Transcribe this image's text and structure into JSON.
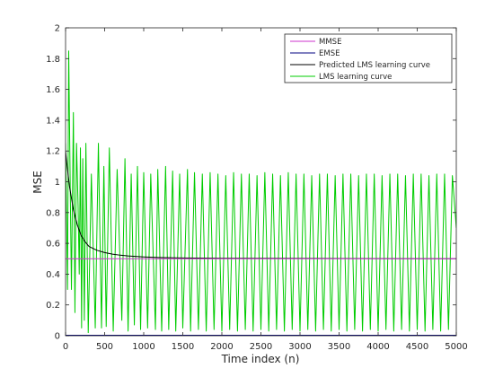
{
  "chart_data": {
    "type": "line",
    "title": "",
    "xlabel": "Time index (n)",
    "ylabel": "MSE",
    "xlim": [
      0,
      5000
    ],
    "ylim": [
      0,
      2
    ],
    "xticks": [
      0,
      500,
      1000,
      1500,
      2000,
      2500,
      3000,
      3500,
      4000,
      4500,
      5000
    ],
    "yticks": [
      0,
      0.2,
      0.4,
      0.6,
      0.8,
      1,
      1.2,
      1.4,
      1.6,
      1.8,
      2
    ],
    "grid": false,
    "legend_position": "top-right",
    "series": [
      {
        "name": "MMSE",
        "color": "#cc33cc",
        "x": [
          0,
          5000
        ],
        "y": [
          0.5,
          0.5
        ]
      },
      {
        "name": "EMSE",
        "color": "#000080",
        "x": [
          0,
          5000
        ],
        "y": [
          0.0,
          0.0
        ]
      },
      {
        "name": "Predicted LMS learning curve",
        "color": "#000000",
        "x": [
          0,
          20,
          50,
          100,
          150,
          200,
          250,
          300,
          400,
          500,
          600,
          700,
          800,
          1000,
          1200,
          1500,
          2000,
          3000,
          4000,
          5000
        ],
        "y": [
          1.2,
          1.1,
          0.97,
          0.82,
          0.72,
          0.65,
          0.61,
          0.58,
          0.555,
          0.54,
          0.53,
          0.523,
          0.518,
          0.512,
          0.508,
          0.505,
          0.503,
          0.502,
          0.501,
          0.5
        ]
      },
      {
        "name": "LMS learning curve",
        "color": "#00cc00",
        "x": [
          0,
          25,
          40,
          60,
          75,
          100,
          120,
          140,
          160,
          175,
          190,
          205,
          220,
          240,
          260,
          290,
          330,
          380,
          420,
          460,
          490,
          520,
          560,
          610,
          660,
          720,
          760,
          800,
          840,
          880,
          920,
          960,
          1000,
          1050,
          1090,
          1150,
          1180,
          1230,
          1280,
          1320,
          1370,
          1410,
          1460,
          1500,
          1560,
          1600,
          1650,
          1700,
          1750,
          1800,
          1850,
          1900,
          1950,
          2000,
          2050,
          2100,
          2150,
          2200,
          2250,
          2300,
          2350,
          2400,
          2450,
          2500,
          2550,
          2600,
          2650,
          2700,
          2750,
          2800,
          2850,
          2900,
          2950,
          3000,
          3050,
          3100,
          3150,
          3200,
          3250,
          3300,
          3350,
          3400,
          3450,
          3500,
          3550,
          3600,
          3650,
          3700,
          3750,
          3800,
          3850,
          3900,
          3950,
          4000,
          4050,
          4100,
          4150,
          4200,
          4250,
          4300,
          4350,
          4400,
          4450,
          4500,
          4550,
          4600,
          4650,
          4700,
          4750,
          4800,
          4850,
          4900,
          4950,
          5000
        ],
        "y": [
          1.25,
          0.3,
          1.85,
          0.95,
          0.3,
          1.45,
          0.15,
          1.25,
          0.85,
          0.4,
          1.22,
          0.05,
          1.15,
          0.1,
          1.25,
          0.02,
          1.05,
          0.05,
          1.25,
          0.05,
          1.1,
          0.06,
          1.22,
          0.03,
          1.08,
          0.1,
          1.15,
          0.03,
          1.05,
          0.07,
          1.1,
          0.04,
          1.06,
          0.05,
          1.05,
          0.04,
          1.08,
          0.03,
          1.1,
          0.04,
          1.07,
          0.03,
          1.05,
          0.05,
          1.08,
          0.03,
          1.06,
          0.04,
          1.05,
          0.03,
          1.06,
          0.04,
          1.05,
          0.03,
          1.04,
          0.04,
          1.06,
          0.03,
          1.05,
          0.04,
          1.05,
          0.03,
          1.04,
          0.04,
          1.06,
          0.03,
          1.05,
          0.04,
          1.04,
          0.03,
          1.06,
          0.04,
          1.05,
          0.03,
          1.05,
          0.04,
          1.04,
          0.03,
          1.05,
          0.04,
          1.05,
          0.03,
          1.04,
          0.04,
          1.05,
          0.03,
          1.05,
          0.04,
          1.04,
          0.03,
          1.05,
          0.04,
          1.05,
          0.03,
          1.04,
          0.04,
          1.05,
          0.03,
          1.05,
          0.04,
          1.04,
          0.03,
          1.05,
          0.04,
          1.05,
          0.03,
          1.04,
          0.04,
          1.05,
          0.03,
          1.05,
          0.04,
          1.04,
          0.7
        ]
      }
    ]
  }
}
